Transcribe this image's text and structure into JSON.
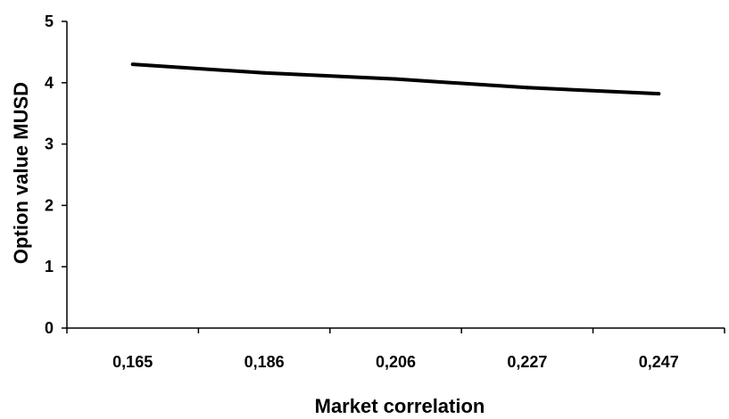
{
  "chart_data": {
    "type": "line",
    "title": "",
    "xlabel": "Market correlation",
    "ylabel": "Option value MUSD",
    "categories": [
      "0,165",
      "0,186",
      "0,206",
      "0,227",
      "0,247"
    ],
    "series": [
      {
        "values": [
          4.3,
          4.16,
          4.06,
          3.92,
          3.82
        ],
        "color": "#000000"
      }
    ],
    "ylim": [
      0,
      5
    ],
    "yticks": [
      "0",
      "1",
      "2",
      "3",
      "4",
      "5"
    ],
    "grid": false,
    "legend": "none"
  }
}
